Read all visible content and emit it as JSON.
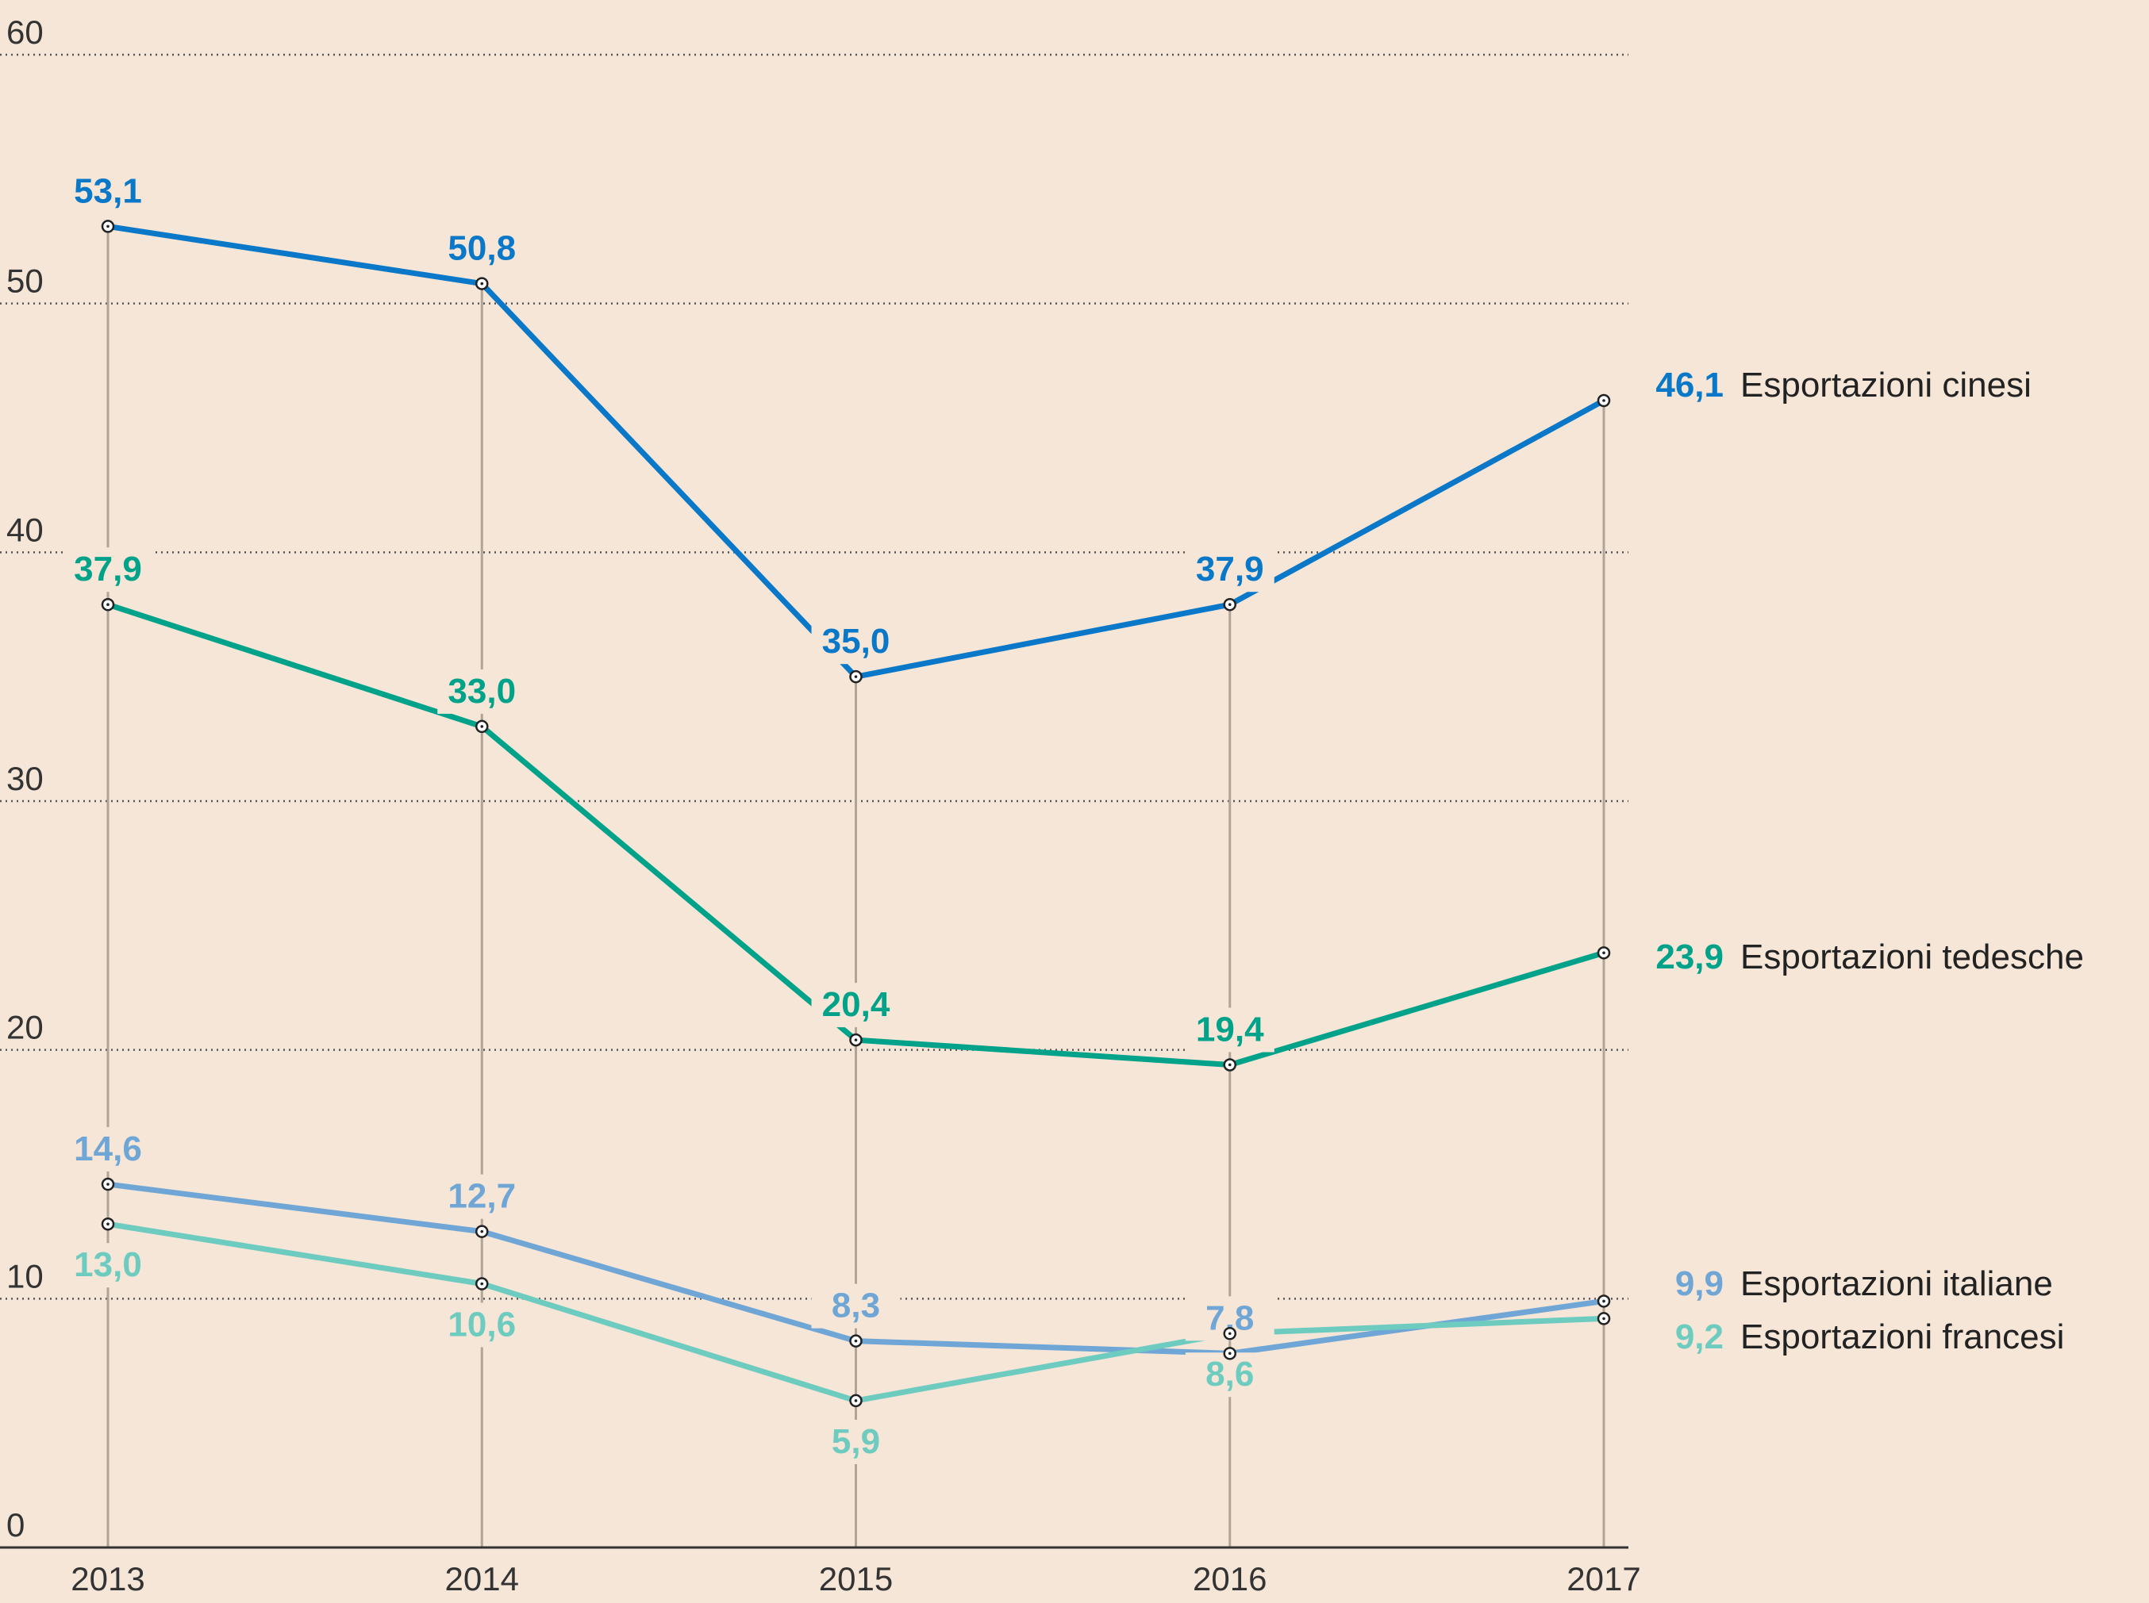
{
  "chart_data": {
    "type": "line",
    "title": "",
    "xlabel": "",
    "ylabel": "",
    "x": [
      "2013",
      "2014",
      "2015",
      "2016",
      "2017"
    ],
    "ylim": [
      0,
      60
    ],
    "yticks": [
      "0",
      "10",
      "20",
      "30",
      "40",
      "50",
      "60"
    ],
    "grid": true,
    "legend": "right, inline at line ends",
    "series": [
      {
        "name": "Esportazioni cinesi",
        "color": "#0a78c8",
        "values": [
          53.1,
          50.8,
          35.0,
          37.9,
          46.1
        ],
        "labels": [
          "53,1",
          "50,8",
          "35,0",
          "37,9",
          "46,1"
        ]
      },
      {
        "name": "Esportazioni tedesche",
        "color": "#00a38a",
        "values": [
          37.9,
          33.0,
          20.4,
          19.4,
          23.9
        ],
        "labels": [
          "37,9",
          "33,0",
          "20,4",
          "19,4",
          "23,9"
        ]
      },
      {
        "name": "Esportazioni italiane",
        "color": "#6fa6d6",
        "values": [
          14.6,
          12.7,
          8.3,
          7.8,
          9.9
        ],
        "labels": [
          "14,6",
          "12,7",
          "8,3",
          "7,8",
          "9,9"
        ]
      },
      {
        "name": "Esportazioni francesi",
        "color": "#6ecbbf",
        "values": [
          13.0,
          10.6,
          5.9,
          8.6,
          9.2
        ],
        "labels": [
          "13,0",
          "10,6",
          "5,9",
          "8,6",
          "9,2"
        ]
      }
    ]
  }
}
